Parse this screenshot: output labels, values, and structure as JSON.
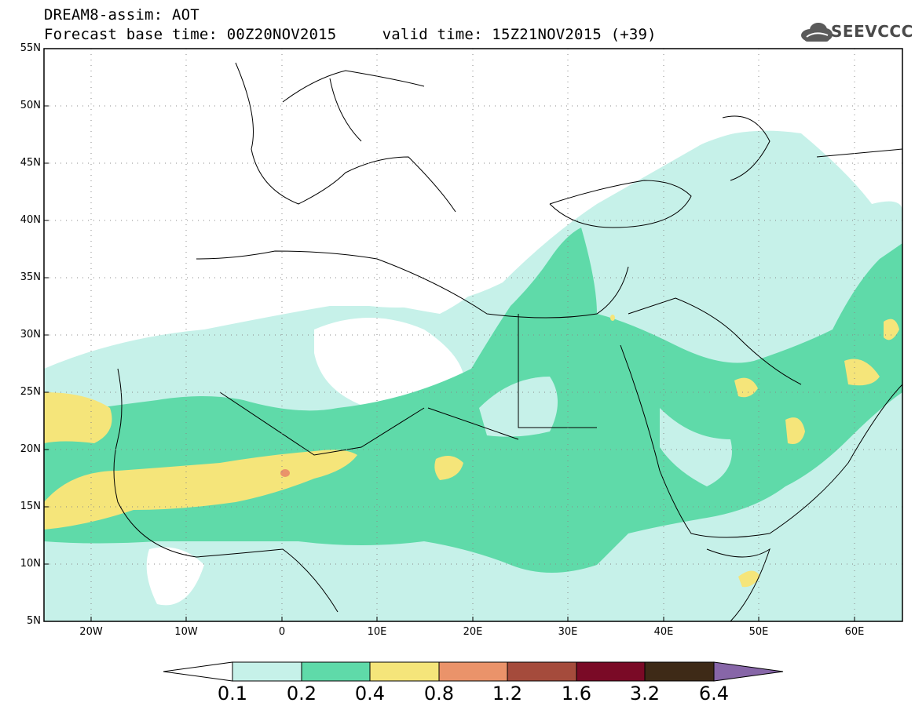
{
  "title": {
    "line1": "DREAM8-assim: AOT",
    "line2": "Forecast base time: 00Z20NOV2015     valid time: 15Z21NOV2015 (+39)"
  },
  "logo": {
    "text": "SEEVCCC"
  },
  "axes": {
    "lat_labels": [
      "55N",
      "50N",
      "45N",
      "40N",
      "35N",
      "30N",
      "25N",
      "20N",
      "15N",
      "10N",
      "5N"
    ],
    "lon_labels": [
      "20W",
      "10W",
      "0",
      "10E",
      "20E",
      "30E",
      "40E",
      "50E",
      "60E"
    ],
    "lat_range": [
      5,
      55
    ],
    "lon_range": [
      -25,
      65
    ],
    "grid": "dotted"
  },
  "colorbar": {
    "labels": [
      "0.1",
      "0.2",
      "0.4",
      "0.8",
      "1.2",
      "1.6",
      "3.2",
      "6.4"
    ],
    "colors": [
      "#ffffff",
      "#c6f1e9",
      "#5fdaa9",
      "#f5e57a",
      "#ea936a",
      "#a54b3c",
      "#7a0a26",
      "#3e2a17",
      "#8766a8"
    ]
  }
}
